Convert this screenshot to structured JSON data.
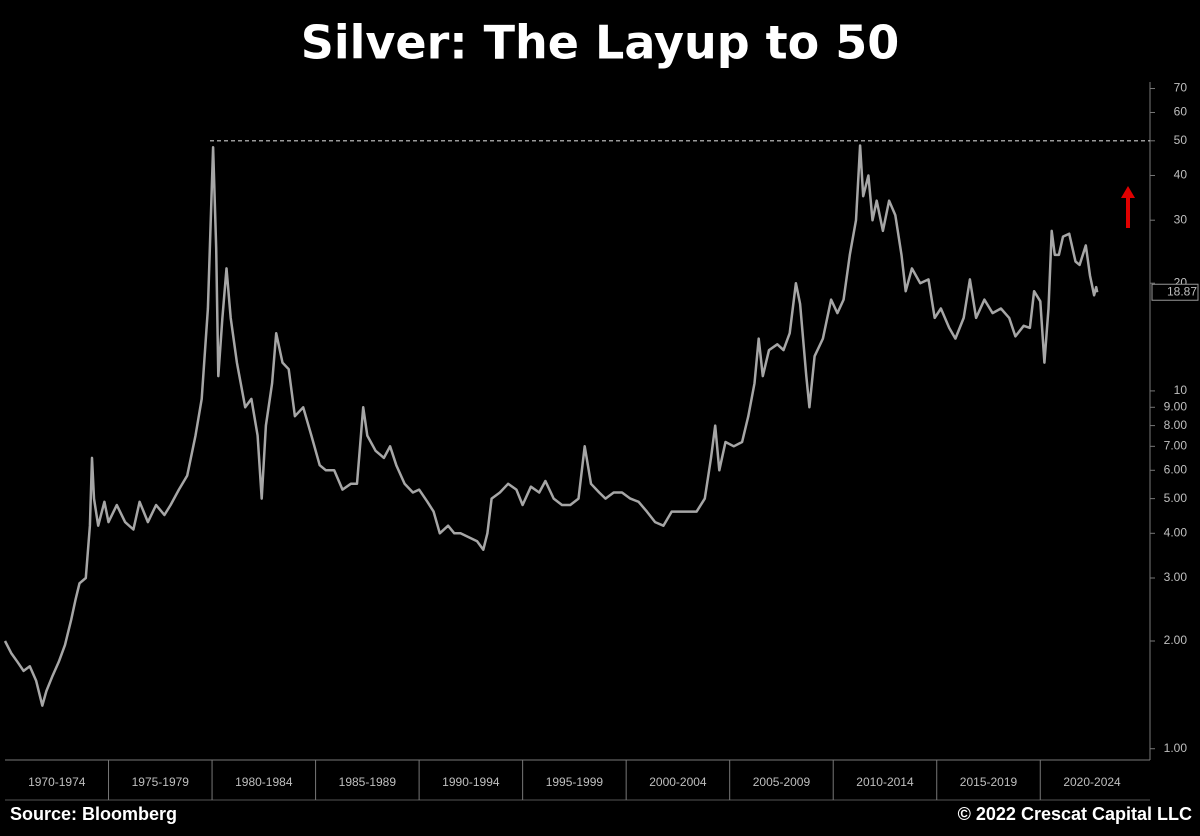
{
  "chart_data": {
    "type": "line",
    "title": "Silver: The Layup to 50",
    "source": "Source: Bloomberg",
    "copyright": "© 2022 Crescat Capital LLC",
    "log_scale": true,
    "reference_line": 50,
    "last_value": 18.87,
    "x": [
      1970.0,
      1970.3,
      1970.6,
      1970.9,
      1971.2,
      1971.5,
      1971.8,
      1972.0,
      1972.3,
      1972.6,
      1972.9,
      1973.2,
      1973.4,
      1973.6,
      1973.9,
      1974.1,
      1974.2,
      1974.3,
      1974.5,
      1974.8,
      1975.0,
      1975.4,
      1975.8,
      1976.2,
      1976.5,
      1976.9,
      1977.3,
      1977.7,
      1978.0,
      1978.4,
      1978.8,
      1979.2,
      1979.5,
      1979.8,
      1980.05,
      1980.2,
      1980.3,
      1980.5,
      1980.7,
      1980.9,
      1981.2,
      1981.6,
      1981.9,
      1982.2,
      1982.4,
      1982.6,
      1982.9,
      1983.1,
      1983.4,
      1983.7,
      1984.0,
      1984.4,
      1984.8,
      1985.2,
      1985.5,
      1985.9,
      1986.3,
      1986.7,
      1987.0,
      1987.3,
      1987.5,
      1987.9,
      1988.3,
      1988.6,
      1988.9,
      1989.3,
      1989.7,
      1990.0,
      1990.4,
      1990.7,
      1991.0,
      1991.4,
      1991.7,
      1992.0,
      1992.4,
      1992.8,
      1993.1,
      1993.3,
      1993.5,
      1993.9,
      1994.3,
      1994.7,
      1995.0,
      1995.4,
      1995.8,
      1996.1,
      1996.5,
      1996.9,
      1997.3,
      1997.7,
      1998.0,
      1998.3,
      1998.7,
      1999.0,
      1999.4,
      1999.8,
      2000.2,
      2000.6,
      2001.0,
      2001.4,
      2001.8,
      2002.2,
      2002.6,
      2003.0,
      2003.4,
      2003.8,
      2004.1,
      2004.3,
      2004.5,
      2004.8,
      2005.2,
      2005.6,
      2005.9,
      2006.2,
      2006.4,
      2006.6,
      2006.9,
      2007.3,
      2007.6,
      2007.9,
      2008.2,
      2008.4,
      2008.7,
      2008.85,
      2009.1,
      2009.5,
      2009.9,
      2010.2,
      2010.5,
      2010.8,
      2011.1,
      2011.3,
      2011.45,
      2011.7,
      2011.9,
      2012.1,
      2012.4,
      2012.7,
      2013.0,
      2013.3,
      2013.5,
      2013.8,
      2014.2,
      2014.6,
      2014.9,
      2015.2,
      2015.6,
      2015.9,
      2016.3,
      2016.6,
      2016.9,
      2017.3,
      2017.7,
      2018.1,
      2018.5,
      2018.8,
      2019.2,
      2019.5,
      2019.7,
      2020.0,
      2020.2,
      2020.4,
      2020.55,
      2020.7,
      2020.9,
      2021.1,
      2021.4,
      2021.7,
      2021.9,
      2022.2,
      2022.4,
      2022.6,
      2022.7,
      2022.75
    ],
    "series": [
      {
        "color": "#a6a6a6",
        "values": [
          2.0,
          1.85,
          1.75,
          1.65,
          1.7,
          1.55,
          1.32,
          1.45,
          1.6,
          1.75,
          1.95,
          2.3,
          2.6,
          2.9,
          3.0,
          4.2,
          6.5,
          5.0,
          4.2,
          4.9,
          4.3,
          4.8,
          4.3,
          4.1,
          4.9,
          4.3,
          4.8,
          4.5,
          4.8,
          5.3,
          5.8,
          7.5,
          9.5,
          17,
          48,
          25,
          11,
          16,
          22,
          16,
          12,
          9,
          9.5,
          7.5,
          5.0,
          8,
          10.5,
          14.5,
          12,
          11.5,
          8.5,
          9,
          7.5,
          6.2,
          6.0,
          6.0,
          5.3,
          5.5,
          5.5,
          9.0,
          7.5,
          6.8,
          6.5,
          7.0,
          6.2,
          5.5,
          5.2,
          5.3,
          4.9,
          4.6,
          4.0,
          4.2,
          4.0,
          4.0,
          3.9,
          3.8,
          3.6,
          4.0,
          5.0,
          5.2,
          5.5,
          5.3,
          4.8,
          5.4,
          5.2,
          5.6,
          5.0,
          4.8,
          4.8,
          5.0,
          7.0,
          5.5,
          5.2,
          5.0,
          5.2,
          5.2,
          5.0,
          4.9,
          4.6,
          4.3,
          4.2,
          4.6,
          4.6,
          4.6,
          4.6,
          5.0,
          6.5,
          8.0,
          6.0,
          7.2,
          7.0,
          7.2,
          8.5,
          10.5,
          14.0,
          11.0,
          13.0,
          13.5,
          13.0,
          14.5,
          20.0,
          17.5,
          11,
          9.0,
          12.5,
          14,
          18,
          16.5,
          18,
          24,
          30,
          48.5,
          35,
          40,
          30,
          34,
          28,
          34,
          31,
          24,
          19,
          22,
          20,
          20.5,
          16,
          17,
          15,
          14,
          16,
          20.5,
          16,
          18,
          16.5,
          17,
          16,
          14.2,
          15.2,
          15,
          19,
          17.8,
          12.0,
          17,
          28,
          24,
          24,
          27,
          27.5,
          23,
          22.5,
          25.5,
          21,
          18.5,
          19.5,
          18.87
        ]
      }
    ],
    "xlim": [
      1970,
      2025.3
    ],
    "xticks": [
      {
        "value": 1972.5,
        "label": "1970-1974"
      },
      {
        "value": 1977.5,
        "label": "1975-1979"
      },
      {
        "value": 1982.5,
        "label": "1980-1984"
      },
      {
        "value": 1987.5,
        "label": "1985-1989"
      },
      {
        "value": 1992.5,
        "label": "1990-1994"
      },
      {
        "value": 1997.5,
        "label": "1995-1999"
      },
      {
        "value": 2002.5,
        "label": "2000-2004"
      },
      {
        "value": 2007.5,
        "label": "2005-2009"
      },
      {
        "value": 2012.5,
        "label": "2010-2014"
      },
      {
        "value": 2017.5,
        "label": "2015-2019"
      },
      {
        "value": 2022.5,
        "label": "2020-2024"
      }
    ],
    "ylim": [
      0.93,
      73
    ],
    "yticks": [
      {
        "value": 1,
        "label": "1.00"
      },
      {
        "value": 2,
        "label": "2.00"
      },
      {
        "value": 3,
        "label": "3.00"
      },
      {
        "value": 4,
        "label": "4.00"
      },
      {
        "value": 5,
        "label": "5.00"
      },
      {
        "value": 6,
        "label": "6.00"
      },
      {
        "value": 7,
        "label": "7.00"
      },
      {
        "value": 8,
        "label": "8.00"
      },
      {
        "value": 9,
        "label": "9.00"
      },
      10,
      20,
      30,
      40,
      50,
      60,
      70
    ]
  }
}
